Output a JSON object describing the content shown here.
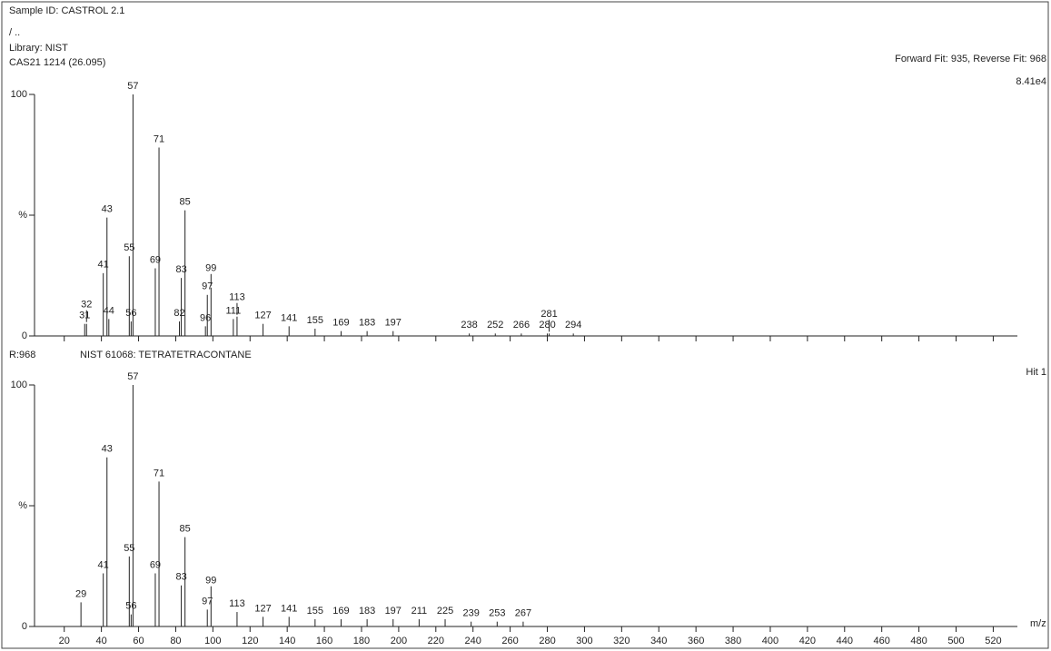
{
  "chart_data": [
    {
      "type": "bar",
      "title": "Sample ID: CASTROL 2.1",
      "subtitle": "/ ..",
      "library": "Library: NIST",
      "scan": "CAS21 1214 (26.095)",
      "fit": "Forward Fit: 935, Reverse Fit: 968",
      "intensity_scale": "8.41e4",
      "x": [
        31,
        32,
        41,
        43,
        44,
        55,
        56,
        57,
        69,
        71,
        82,
        83,
        85,
        96,
        97,
        99,
        111,
        113,
        127,
        141,
        155,
        169,
        183,
        197,
        238,
        252,
        266,
        280,
        281,
        294
      ],
      "values": [
        5,
        5,
        26,
        49,
        7,
        33,
        6,
        100,
        28,
        78,
        6,
        24,
        52,
        4,
        17,
        20,
        7,
        8,
        5,
        4,
        3,
        2,
        2,
        2,
        1,
        1,
        1,
        1,
        1,
        1
      ],
      "color": "#222222",
      "xlim": [
        4,
        533
      ],
      "ylim": [
        0,
        100
      ],
      "yticks": [
        0,
        {
          "value": 50,
          "label": "%"
        },
        100
      ]
    },
    {
      "type": "bar",
      "ratio": "R:968",
      "title": "NIST 61068: TETRATETRACONTANE",
      "hit": "Hit 1",
      "xlabel": "m/z",
      "x": [
        29,
        41,
        43,
        55,
        56,
        57,
        69,
        71,
        83,
        85,
        97,
        99,
        113,
        127,
        141,
        155,
        169,
        183,
        197,
        211,
        225,
        239,
        253,
        267
      ],
      "values": [
        10,
        22,
        70,
        29,
        5,
        100,
        22,
        60,
        17,
        37,
        7,
        11,
        6,
        4,
        4,
        3,
        3,
        3,
        3,
        3,
        3,
        2,
        2,
        2
      ],
      "color": "#222222",
      "xlim": [
        4,
        533
      ],
      "ylim": [
        0,
        100
      ],
      "yticks": [
        0,
        {
          "value": 50,
          "label": "%"
        },
        100
      ],
      "xticks": [
        20,
        40,
        60,
        80,
        100,
        120,
        140,
        160,
        180,
        200,
        220,
        240,
        260,
        280,
        300,
        320,
        340,
        360,
        380,
        400,
        420,
        440,
        460,
        480,
        500,
        520
      ]
    }
  ]
}
